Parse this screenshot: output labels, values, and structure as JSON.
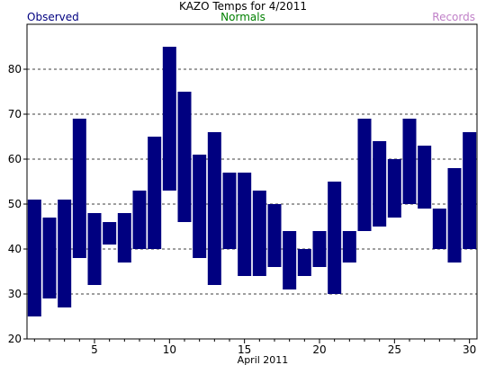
{
  "chart_title": "KAZO Temps for  4/2011",
  "legend": {
    "observed": "Observed",
    "normals": "Normals",
    "records": "Records"
  },
  "colors": {
    "observed": "#000080",
    "normals": "#008000",
    "records": "#c080c8",
    "grid": "#000000"
  },
  "chart_data": {
    "type": "bar",
    "title": "KAZO Temps for  4/2011",
    "xlabel": "April 2011",
    "ylabel": "",
    "xlim": [
      0.5,
      30.5
    ],
    "ylim": [
      20,
      90
    ],
    "yticks": [
      20,
      30,
      40,
      50,
      60,
      70,
      80
    ],
    "xticks": [
      5,
      10,
      15,
      20,
      25,
      30
    ],
    "grid": "horizontal dashed",
    "series": [
      {
        "name": "Observed",
        "days": [
          1,
          2,
          3,
          4,
          5,
          6,
          7,
          8,
          9,
          10,
          11,
          12,
          13,
          14,
          15,
          16,
          17,
          18,
          19,
          20,
          21,
          22,
          23,
          24,
          25,
          26,
          27,
          28,
          29,
          30
        ],
        "high": [
          51,
          47,
          51,
          69,
          48,
          46,
          48,
          53,
          65,
          85,
          75,
          61,
          66,
          57,
          57,
          53,
          50,
          44,
          40,
          44,
          55,
          44,
          69,
          64,
          60,
          69,
          63,
          49,
          58,
          66
        ],
        "low": [
          25,
          29,
          27,
          38,
          32,
          41,
          37,
          40,
          40,
          53,
          46,
          38,
          32,
          40,
          34,
          34,
          36,
          31,
          34,
          36,
          30,
          37,
          44,
          45,
          47,
          50,
          49,
          40,
          37,
          40
        ]
      }
    ]
  }
}
